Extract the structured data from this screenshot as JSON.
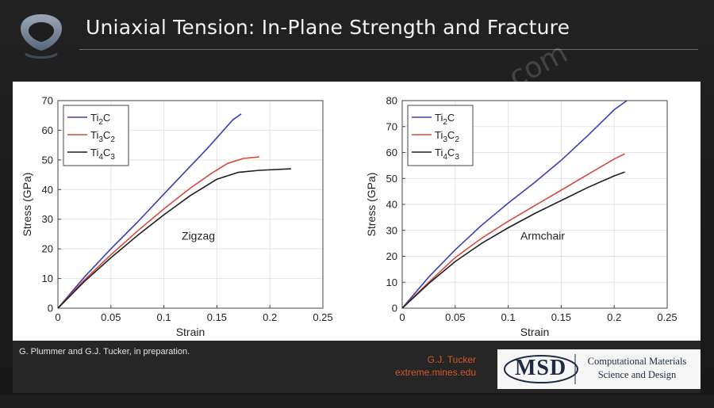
{
  "slide": {
    "title": "Uniaxial Tension: In-Plane Strength and Fracture",
    "watermark": "com",
    "citation": "G. Plummer and G.J. Tucker, in preparation.",
    "author": "G.J. Tucker",
    "author_site": "extreme.mines.edu",
    "msd_logo_text": "MSD",
    "msd_line1": "Computational Materials",
    "msd_line2": "Science and Design"
  },
  "colors": {
    "ti2c": "#3b3fb5",
    "ti3c2": "#d84a3f",
    "ti4c3": "#1e1e1e"
  },
  "chart_data": [
    {
      "type": "line",
      "title": "",
      "annotation": "Zigzag",
      "xlabel": "Strain",
      "ylabel": "Stress (GPa)",
      "xlim": [
        0,
        0.25
      ],
      "ylim": [
        0,
        70
      ],
      "xticks": [
        0,
        0.05,
        0.1,
        0.15,
        0.2,
        0.25
      ],
      "xtick_labels": [
        "0",
        "0.05",
        "0.1",
        "0.15",
        "0.2",
        "0.25"
      ],
      "yticks": [
        0,
        10,
        20,
        30,
        40,
        50,
        60,
        70
      ],
      "ytick_labels": [
        "0",
        "10",
        "20",
        "30",
        "40",
        "50",
        "60",
        "70"
      ],
      "grid": true,
      "legend": "top-left",
      "series": [
        {
          "name": "Ti",
          "sub1": "2",
          "name2": "C",
          "sub2": "",
          "color": "#3b3fb5",
          "points": [
            [
              0,
              0
            ],
            [
              0.025,
              10.5
            ],
            [
              0.05,
              20
            ],
            [
              0.075,
              29
            ],
            [
              0.1,
              38.5
            ],
            [
              0.12,
              46
            ],
            [
              0.14,
              53.5
            ],
            [
              0.155,
              59.5
            ],
            [
              0.165,
              63.5
            ],
            [
              0.173,
              65.5
            ]
          ]
        },
        {
          "name": "Ti",
          "sub1": "3",
          "name2": "C",
          "sub2": "2",
          "color": "#d84a3f",
          "points": [
            [
              0,
              0
            ],
            [
              0.025,
              9.5
            ],
            [
              0.05,
              18
            ],
            [
              0.075,
              26
            ],
            [
              0.1,
              33.5
            ],
            [
              0.125,
              40.5
            ],
            [
              0.145,
              45.5
            ],
            [
              0.16,
              48.8
            ],
            [
              0.175,
              50.5
            ],
            [
              0.19,
              51
            ]
          ]
        },
        {
          "name": "Ti",
          "sub1": "4",
          "name2": "C",
          "sub2": "3",
          "color": "#1e1e1e",
          "points": [
            [
              0,
              0
            ],
            [
              0.025,
              9
            ],
            [
              0.05,
              17
            ],
            [
              0.075,
              24.5
            ],
            [
              0.1,
              31.5
            ],
            [
              0.125,
              38
            ],
            [
              0.15,
              43.5
            ],
            [
              0.17,
              45.8
            ],
            [
              0.19,
              46.5
            ],
            [
              0.22,
              47
            ]
          ]
        }
      ]
    },
    {
      "type": "line",
      "title": "",
      "annotation": "Armchair",
      "xlabel": "Strain",
      "ylabel": "Stress (GPa)",
      "xlim": [
        0,
        0.25
      ],
      "ylim": [
        0,
        80
      ],
      "xticks": [
        0,
        0.05,
        0.1,
        0.15,
        0.2,
        0.25
      ],
      "xtick_labels": [
        "0",
        "0.05",
        "0.1",
        "0.15",
        "0.2",
        "0.25"
      ],
      "yticks": [
        0,
        10,
        20,
        30,
        40,
        50,
        60,
        70,
        80
      ],
      "ytick_labels": [
        "0",
        "10",
        "20",
        "30",
        "40",
        "50",
        "60",
        "70",
        "80"
      ],
      "grid": true,
      "legend": "top-left",
      "series": [
        {
          "name": "Ti",
          "sub1": "2",
          "name2": "C",
          "sub2": "",
          "color": "#3b3fb5",
          "points": [
            [
              0,
              0
            ],
            [
              0.025,
              12
            ],
            [
              0.05,
              22.5
            ],
            [
              0.075,
              32
            ],
            [
              0.1,
              40.5
            ],
            [
              0.125,
              48.5
            ],
            [
              0.15,
              57
            ],
            [
              0.175,
              66.5
            ],
            [
              0.2,
              76.5
            ],
            [
              0.212,
              80
            ]
          ]
        },
        {
          "name": "Ti",
          "sub1": "3",
          "name2": "C",
          "sub2": "2",
          "color": "#d84a3f",
          "points": [
            [
              0,
              0
            ],
            [
              0.025,
              10
            ],
            [
              0.05,
              19.5
            ],
            [
              0.075,
              27
            ],
            [
              0.1,
              33.5
            ],
            [
              0.125,
              39.5
            ],
            [
              0.15,
              45.5
            ],
            [
              0.175,
              51.5
            ],
            [
              0.2,
              57.5
            ],
            [
              0.21,
              59.5
            ]
          ]
        },
        {
          "name": "Ti",
          "sub1": "4",
          "name2": "C",
          "sub2": "3",
          "color": "#1e1e1e",
          "points": [
            [
              0,
              0
            ],
            [
              0.025,
              9.5
            ],
            [
              0.05,
              18
            ],
            [
              0.075,
              25
            ],
            [
              0.1,
              31
            ],
            [
              0.125,
              36.5
            ],
            [
              0.15,
              41.5
            ],
            [
              0.175,
              46.5
            ],
            [
              0.2,
              51
            ],
            [
              0.21,
              52.5
            ]
          ]
        }
      ]
    }
  ]
}
